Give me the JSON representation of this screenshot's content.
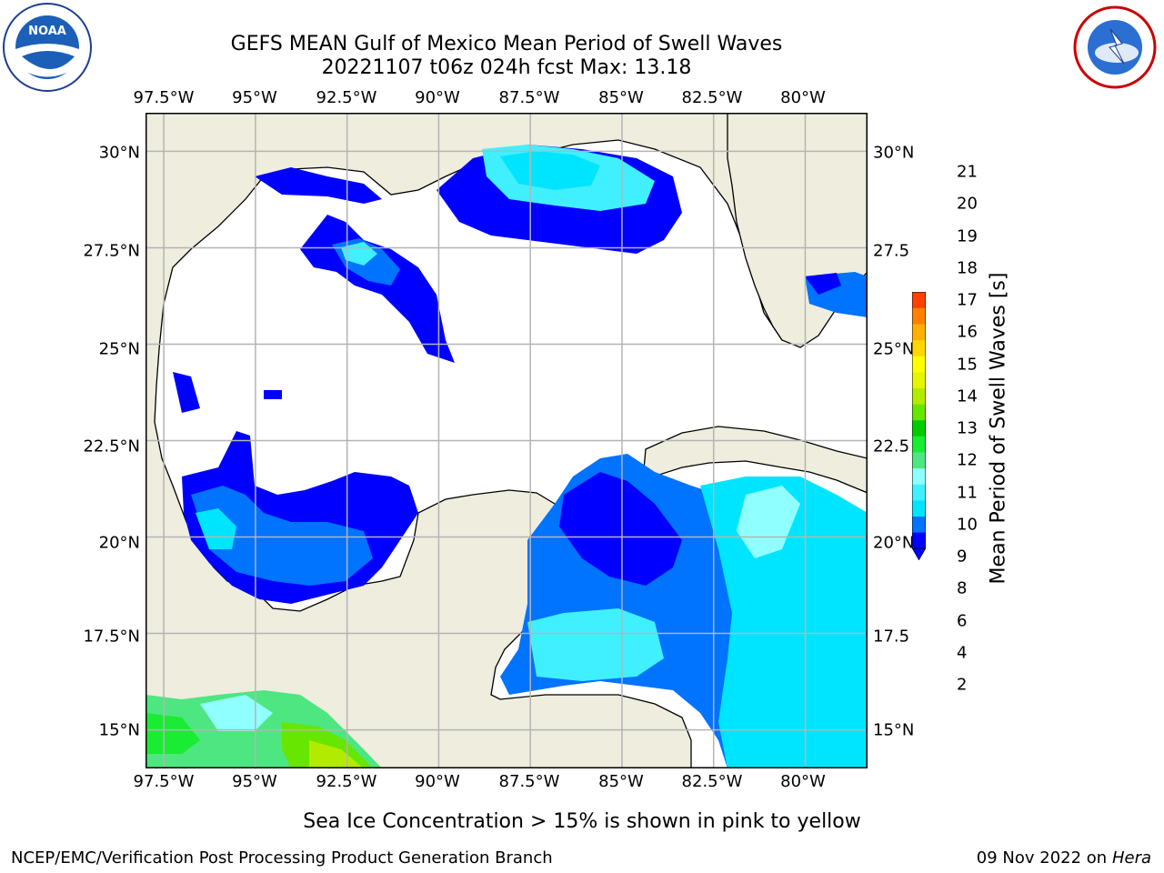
{
  "header": {
    "title_line1": "GEFS MEAN Gulf of Mexico Mean Period of Swell Waves",
    "title_line2": "20221107 t06z 024h fcst   Max: 13.18"
  },
  "logos": {
    "left": {
      "name": "NOAA",
      "ring_text": "NATIONAL OCEANIC AND ATMOSPHERIC ADMINISTRATION • U.S. DEPARTMENT OF COMMERCE"
    },
    "right": {
      "name": "NATIONAL WEATHER SERVICE"
    }
  },
  "map": {
    "lon_ticks": [
      "97.5°W",
      "95°W",
      "92.5°W",
      "90°W",
      "87.5°W",
      "85°W",
      "82.5°W",
      "80°W"
    ],
    "lon_values": [
      -97.5,
      -95,
      -92.5,
      -90,
      -87.5,
      -85,
      -82.5,
      -80
    ],
    "lat_ticks": [
      "30°N",
      "27.5°N",
      "25°N",
      "22.5°N",
      "20°N",
      "17.5°N",
      "15°N"
    ],
    "lat_values": [
      30,
      27.5,
      25,
      22.5,
      20,
      17.5,
      15
    ],
    "lat_ticks_right": [
      "30°N",
      "27.5",
      "25°N",
      "22.5",
      "20°N",
      "17.5",
      "15°N"
    ],
    "extent": {
      "lon_min": -98,
      "lon_max": -78.3,
      "lat_min": 14.0,
      "lat_max": 31.0
    },
    "land_color": "#eeedde",
    "ocean_color": "#ffffff",
    "grid_color": "#b4b4b4"
  },
  "colorbar": {
    "title": "Mean Period of Swell Waves [s]",
    "levels": [
      "2",
      "4",
      "6",
      "8",
      "9",
      "10",
      "11",
      "12",
      "13",
      "14",
      "15",
      "16",
      "17",
      "18",
      "19",
      "20",
      "21"
    ],
    "colors": [
      "#0000ff",
      "#0073ff",
      "#00e5ff",
      "#40f0ff",
      "#90ffff",
      "#4de680",
      "#1aeb33",
      "#00cc00",
      "#66e600",
      "#b3eb00",
      "#e6f500",
      "#ffff00",
      "#ffd700",
      "#ffb000",
      "#ff8000",
      "#ff4000",
      "#ff0000"
    ],
    "extend": "min"
  },
  "footnote": "Sea Ice Concentration > 15% is shown in pink to yellow",
  "credit_left": "NCEP/EMC/Verification Post Processing Product Generation Branch",
  "credit_right_date": "09 Nov 2022 on",
  "credit_right_machine": "Hera"
}
